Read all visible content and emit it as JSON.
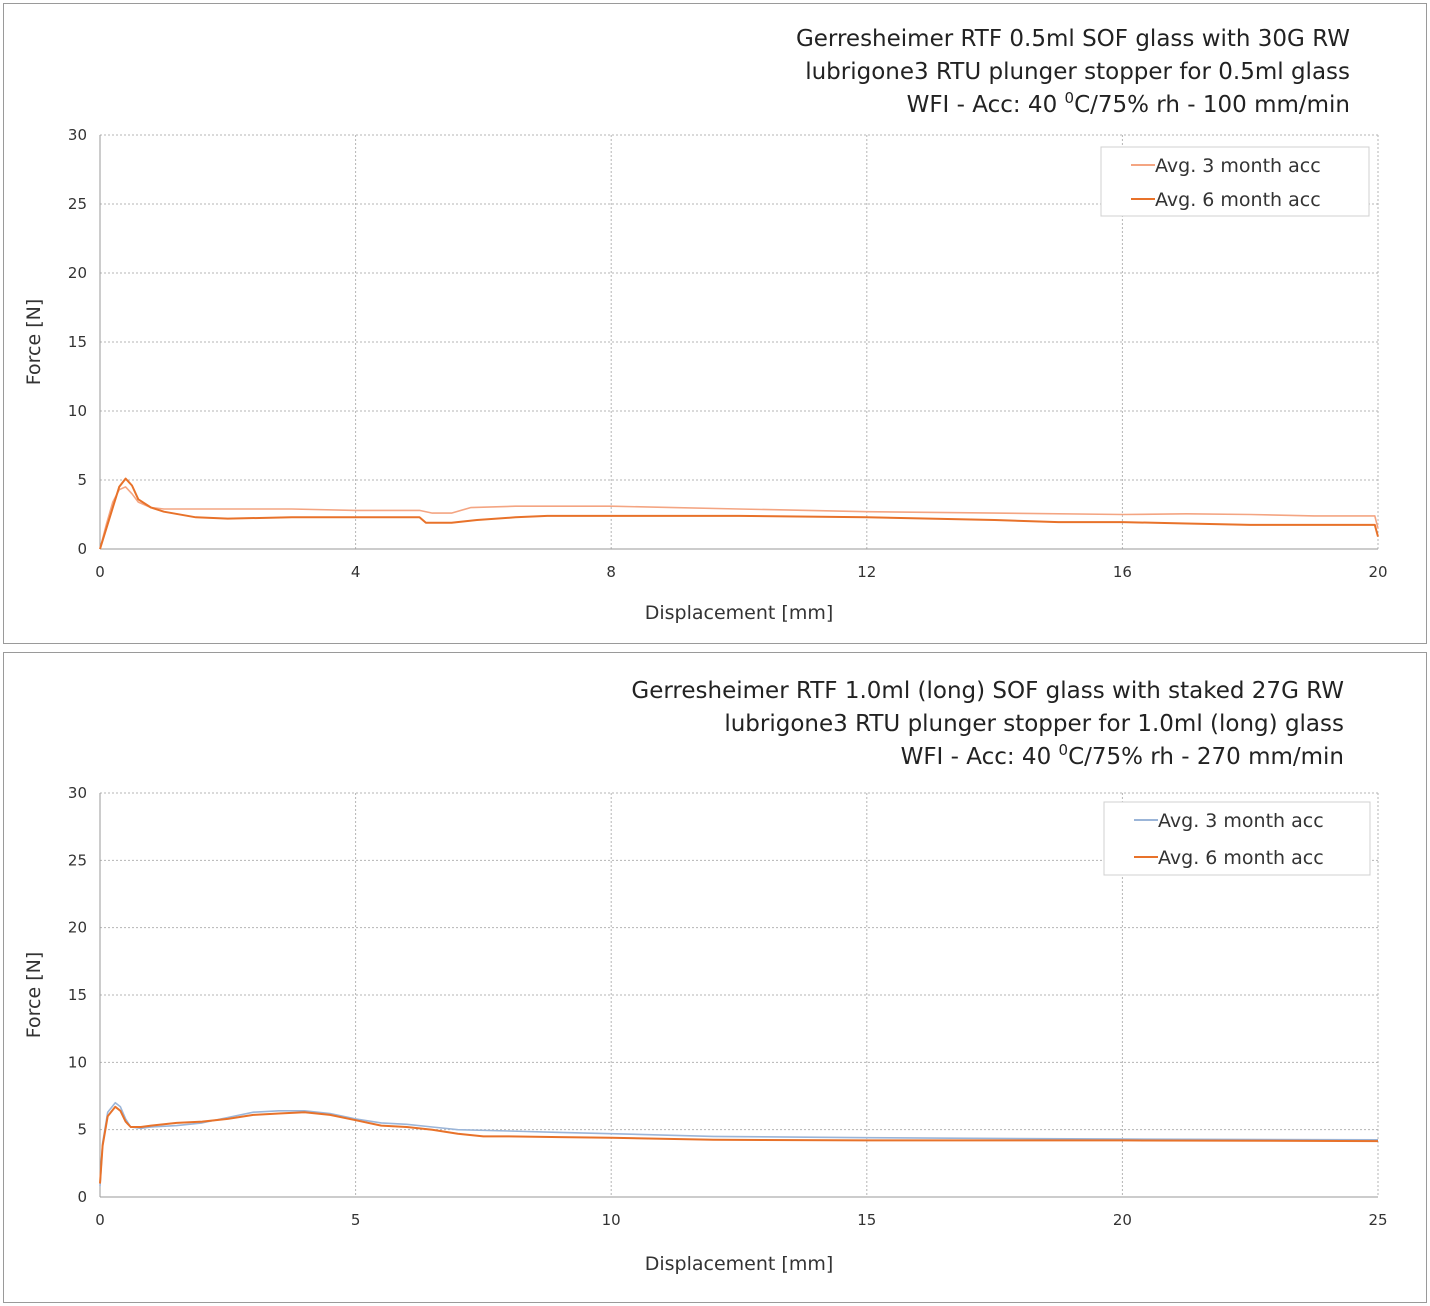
{
  "chart_data": [
    {
      "type": "line",
      "title": [
        "Gerresheimer RTF 0.5ml SOF glass with 30G RW",
        "lubrigone3 RTU plunger stopper for 0.5ml glass"
      ],
      "title_line3": {
        "before": "WFI - Acc: 40 ",
        "sup": "0",
        "after": "C/75% rh - 100 mm/min"
      },
      "xlabel": "Displacement [mm]",
      "ylabel": "Force [N]",
      "xlim": [
        0,
        20
      ],
      "ylim": [
        0,
        30
      ],
      "xticks": [
        0,
        4,
        8,
        12,
        16,
        20
      ],
      "yticks": [
        0,
        5,
        10,
        15,
        20,
        25,
        30
      ],
      "grid": true,
      "legend_position": "top-right",
      "series": [
        {
          "name": "Avg. 3 month acc",
          "color": "#f4a582",
          "x": [
            0,
            0.1,
            0.2,
            0.3,
            0.4,
            0.5,
            0.6,
            0.8,
            1.0,
            2.0,
            3.0,
            4.0,
            5.0,
            5.2,
            5.5,
            5.8,
            6.5,
            8.0,
            10.0,
            12.0,
            14.0,
            16.0,
            17.0,
            18.0,
            19.0,
            19.95,
            20.0
          ],
          "y": [
            0,
            1.8,
            3.4,
            4.3,
            4.5,
            4.0,
            3.4,
            3.0,
            2.9,
            2.9,
            2.9,
            2.8,
            2.8,
            2.6,
            2.6,
            3.0,
            3.1,
            3.1,
            2.9,
            2.7,
            2.6,
            2.5,
            2.55,
            2.5,
            2.4,
            2.4,
            1.5
          ]
        },
        {
          "name": "Avg. 6 month acc",
          "color": "#e8722a",
          "x": [
            0,
            0.1,
            0.2,
            0.3,
            0.4,
            0.5,
            0.6,
            0.8,
            1.0,
            1.5,
            2.0,
            3.0,
            4.0,
            5.0,
            5.1,
            5.5,
            5.9,
            6.5,
            7.0,
            8.0,
            10.0,
            12.0,
            14.0,
            15.0,
            16.0,
            17.0,
            18.0,
            19.0,
            19.95,
            20.0
          ],
          "y": [
            0,
            1.5,
            3.0,
            4.5,
            5.1,
            4.6,
            3.6,
            3.0,
            2.7,
            2.3,
            2.2,
            2.3,
            2.3,
            2.3,
            1.9,
            1.9,
            2.1,
            2.3,
            2.4,
            2.4,
            2.4,
            2.3,
            2.1,
            1.95,
            1.95,
            1.85,
            1.75,
            1.75,
            1.75,
            0.9
          ]
        }
      ]
    },
    {
      "type": "line",
      "title": [
        "Gerresheimer RTF 1.0ml (long) SOF glass with staked 27G RW",
        "lubrigone3 RTU plunger stopper for 1.0ml (long) glass"
      ],
      "title_line3": {
        "before": "WFI - Acc: 40 ",
        "sup": "0",
        "after": "C/75% rh - 270 mm/min"
      },
      "xlabel": "Displacement [mm]",
      "ylabel": "Force [N]",
      "xlim": [
        0,
        25
      ],
      "ylim": [
        0,
        30
      ],
      "xticks": [
        0,
        5,
        10,
        15,
        20,
        25
      ],
      "yticks": [
        0,
        5,
        10,
        15,
        20,
        25,
        30
      ],
      "grid": true,
      "legend_position": "top-right",
      "series": [
        {
          "name": "Avg. 3 month acc",
          "color": "#9bb5d8",
          "x": [
            0,
            0.05,
            0.15,
            0.3,
            0.4,
            0.5,
            0.6,
            0.8,
            1.0,
            1.5,
            2.0,
            2.5,
            3.0,
            3.5,
            4.0,
            4.5,
            5.0,
            5.5,
            6.0,
            6.5,
            7.0,
            8.0,
            9.0,
            10.0,
            12.0,
            15.0,
            20.0,
            25.0
          ],
          "y": [
            0.8,
            4.0,
            6.3,
            7.0,
            6.7,
            5.8,
            5.2,
            5.1,
            5.2,
            5.3,
            5.5,
            5.9,
            6.3,
            6.4,
            6.4,
            6.2,
            5.8,
            5.5,
            5.4,
            5.2,
            5.0,
            4.9,
            4.8,
            4.7,
            4.5,
            4.4,
            4.3,
            4.25
          ]
        },
        {
          "name": "Avg. 6 month acc",
          "color": "#e8722a",
          "x": [
            0,
            0.05,
            0.15,
            0.3,
            0.4,
            0.5,
            0.6,
            0.8,
            1.0,
            1.5,
            2.0,
            2.5,
            3.0,
            3.5,
            4.0,
            4.5,
            5.0,
            5.5,
            6.0,
            6.5,
            7.0,
            7.5,
            8.0,
            9.0,
            10.0,
            12.0,
            15.0,
            20.0,
            25.0
          ],
          "y": [
            1.0,
            3.8,
            6.0,
            6.7,
            6.4,
            5.6,
            5.2,
            5.2,
            5.3,
            5.5,
            5.6,
            5.8,
            6.1,
            6.2,
            6.3,
            6.1,
            5.7,
            5.3,
            5.2,
            5.0,
            4.7,
            4.5,
            4.5,
            4.45,
            4.4,
            4.25,
            4.2,
            4.2,
            4.15
          ]
        }
      ]
    }
  ]
}
